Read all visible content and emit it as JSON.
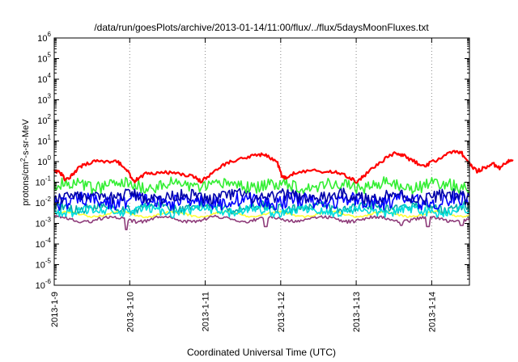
{
  "chart_data": {
    "type": "line",
    "title": "/data/run/goesPlots/archive/2013-01-14/11:00/flux/../flux/5daysMoonFluxes.txt",
    "xlabel": "Coordinated Universal Time (UTC)",
    "ylabel": "protons/cm2-s-sr-MeV",
    "ylabel_parts": {
      "before": "protons/cm",
      "sup": "2",
      "after": "-s-sr-MeV"
    },
    "yscale": "log",
    "ylim_exponent": [
      -6,
      6
    ],
    "ytick_base": "10",
    "yticks_exponent": [
      -6,
      -5,
      -4,
      -3,
      -2,
      -1,
      0,
      1,
      2,
      3,
      4,
      5,
      6
    ],
    "xlim_days": [
      "2013-1-9",
      "2013-1-14 12:00"
    ],
    "xticks": [
      "2013-1-9",
      "2013-1-10",
      "2013-1-11",
      "2013-1-12",
      "2013-1-13",
      "2013-1-14"
    ],
    "x_grid": "dotted",
    "series": [
      {
        "color": "#ffff33",
        "level": 0.0028,
        "noise": 0.05
      },
      {
        "color": "#8e3c7a",
        "level": 0.0016,
        "noise": 0.08,
        "dips": [
          [
            0.95,
            0.0005
          ],
          [
            2.8,
            0.0007
          ],
          [
            4.6,
            0.0008
          ],
          [
            4.95,
            0.0007
          ],
          [
            5.4,
            0.0008
          ]
        ]
      },
      {
        "color": "#00aaaa",
        "level": 0.006,
        "noise": 0.22
      },
      {
        "color": "#00dddd",
        "level": 0.004,
        "noise": 0.22
      },
      {
        "color": "#0000ff",
        "level": 0.012,
        "noise": 0.35
      },
      {
        "color": "#0000aa",
        "level": 0.02,
        "noise": 0.3
      },
      {
        "color": "#33ee33",
        "level": 0.07,
        "noise": 0.3
      },
      {
        "color": "#ff0000",
        "points": [
          [
            0.0,
            0.35
          ],
          [
            0.08,
            0.3
          ],
          [
            0.15,
            0.12
          ],
          [
            0.22,
            0.2
          ],
          [
            0.3,
            0.4
          ],
          [
            0.4,
            0.75
          ],
          [
            0.55,
            1.0
          ],
          [
            0.7,
            1.1
          ],
          [
            0.85,
            0.9
          ],
          [
            0.95,
            0.5
          ],
          [
            1.05,
            0.11
          ],
          [
            1.12,
            0.15
          ],
          [
            1.25,
            0.3
          ],
          [
            1.4,
            0.28
          ],
          [
            1.55,
            0.3
          ],
          [
            1.7,
            0.24
          ],
          [
            1.85,
            0.18
          ],
          [
            1.95,
            0.11
          ],
          [
            2.05,
            0.22
          ],
          [
            2.2,
            0.55
          ],
          [
            2.35,
            1.0
          ],
          [
            2.55,
            1.5
          ],
          [
            2.7,
            2.2
          ],
          [
            2.82,
            2.0
          ],
          [
            2.95,
            1.0
          ],
          [
            3.02,
            0.18
          ],
          [
            3.08,
            0.16
          ],
          [
            3.2,
            0.3
          ],
          [
            3.4,
            0.35
          ],
          [
            3.6,
            0.33
          ],
          [
            3.75,
            0.28
          ],
          [
            3.9,
            0.18
          ],
          [
            4.0,
            0.1
          ],
          [
            4.1,
            0.2
          ],
          [
            4.25,
            0.6
          ],
          [
            4.4,
            1.5
          ],
          [
            4.52,
            2.5
          ],
          [
            4.62,
            2.0
          ],
          [
            4.75,
            1.1
          ],
          [
            4.88,
            0.6
          ],
          [
            5.0,
            0.9
          ],
          [
            5.15,
            1.8
          ],
          [
            5.3,
            3.5
          ],
          [
            5.4,
            2.5
          ],
          [
            5.5,
            0.8
          ],
          [
            5.6,
            0.35
          ],
          [
            5.7,
            0.5
          ],
          [
            5.8,
            0.8
          ],
          [
            5.9,
            0.5
          ],
          [
            6.0,
            1.0
          ],
          [
            6.08,
            1.1
          ]
        ]
      }
    ]
  }
}
